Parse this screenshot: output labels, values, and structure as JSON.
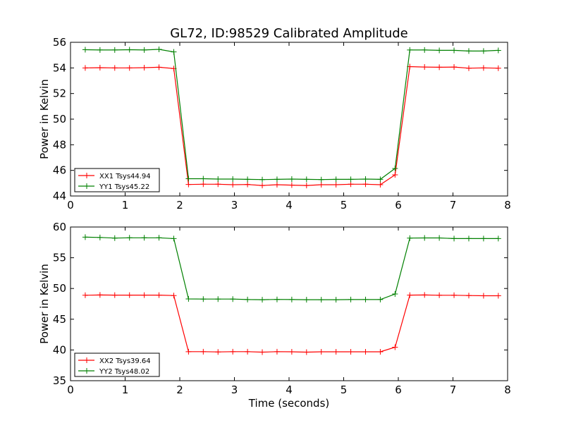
{
  "title": "GL72, ID:98529 Calibrated Amplitude",
  "chart_data": [
    {
      "type": "line",
      "title": "GL72, ID:98529 Calibrated Amplitude",
      "xlabel": "",
      "ylabel": "Power in Kelvin",
      "xlim": [
        0,
        8
      ],
      "ylim": [
        44,
        56
      ],
      "xticks": [
        "0",
        "1",
        "2",
        "3",
        "4",
        "5",
        "6",
        "7",
        "8"
      ],
      "yticks": [
        "44",
        "46",
        "48",
        "50",
        "52",
        "54",
        "56"
      ],
      "grid": false,
      "legend_position": "lower-left",
      "x": [
        0.27,
        0.54,
        0.81,
        1.08,
        1.35,
        1.62,
        1.89,
        2.16,
        2.43,
        2.7,
        2.97,
        3.24,
        3.51,
        3.78,
        4.05,
        4.32,
        4.59,
        4.86,
        5.13,
        5.4,
        5.67,
        5.94,
        6.21,
        6.48,
        6.75,
        7.02,
        7.29,
        7.56,
        7.83
      ],
      "series": [
        {
          "name": "XX1 Tsys44.94",
          "color": "#ff0000",
          "values": [
            54.0,
            54.02,
            54.0,
            54.0,
            54.02,
            54.05,
            53.95,
            44.9,
            44.92,
            44.92,
            44.88,
            44.9,
            44.82,
            44.88,
            44.85,
            44.82,
            44.88,
            44.88,
            44.92,
            44.92,
            44.88,
            45.65,
            54.1,
            54.07,
            54.05,
            54.07,
            53.98,
            54.0,
            53.98
          ]
        },
        {
          "name": "YY1 Tsys45.22",
          "color": "#008000",
          "values": [
            55.42,
            55.4,
            55.4,
            55.42,
            55.4,
            55.45,
            55.25,
            45.35,
            45.35,
            45.32,
            45.32,
            45.3,
            45.28,
            45.3,
            45.32,
            45.3,
            45.28,
            45.3,
            45.3,
            45.32,
            45.3,
            46.15,
            55.4,
            55.4,
            55.37,
            55.37,
            55.32,
            55.32,
            55.37
          ]
        }
      ]
    },
    {
      "type": "line",
      "title": "",
      "xlabel": "Time (seconds)",
      "ylabel": "Power in Kelvin",
      "xlim": [
        0,
        8
      ],
      "ylim": [
        35,
        60
      ],
      "xticks": [
        "0",
        "1",
        "2",
        "3",
        "4",
        "5",
        "6",
        "7",
        "8"
      ],
      "yticks": [
        "35",
        "40",
        "45",
        "50",
        "55",
        "60"
      ],
      "grid": false,
      "legend_position": "lower-left",
      "x": [
        0.27,
        0.54,
        0.81,
        1.08,
        1.35,
        1.62,
        1.89,
        2.16,
        2.43,
        2.7,
        2.97,
        3.24,
        3.51,
        3.78,
        4.05,
        4.32,
        4.59,
        4.86,
        5.13,
        5.4,
        5.67,
        5.94,
        6.21,
        6.48,
        6.75,
        7.02,
        7.29,
        7.56,
        7.83
      ],
      "series": [
        {
          "name": "XX2 Tsys39.64",
          "color": "#ff0000",
          "values": [
            48.9,
            48.95,
            48.92,
            48.92,
            48.92,
            48.92,
            48.85,
            39.72,
            39.72,
            39.68,
            39.72,
            39.72,
            39.65,
            39.72,
            39.7,
            39.65,
            39.7,
            39.7,
            39.7,
            39.7,
            39.7,
            40.45,
            48.92,
            48.95,
            48.9,
            48.9,
            48.85,
            48.82,
            48.82
          ]
        },
        {
          "name": "YY2 Tsys48.02",
          "color": "#008000",
          "values": [
            58.35,
            58.3,
            58.2,
            58.25,
            58.25,
            58.25,
            58.12,
            48.3,
            48.28,
            48.28,
            48.28,
            48.2,
            48.18,
            48.22,
            48.2,
            48.18,
            48.18,
            48.18,
            48.2,
            48.2,
            48.2,
            49.1,
            58.2,
            58.22,
            58.22,
            58.12,
            58.12,
            58.12,
            58.12
          ]
        }
      ]
    }
  ]
}
